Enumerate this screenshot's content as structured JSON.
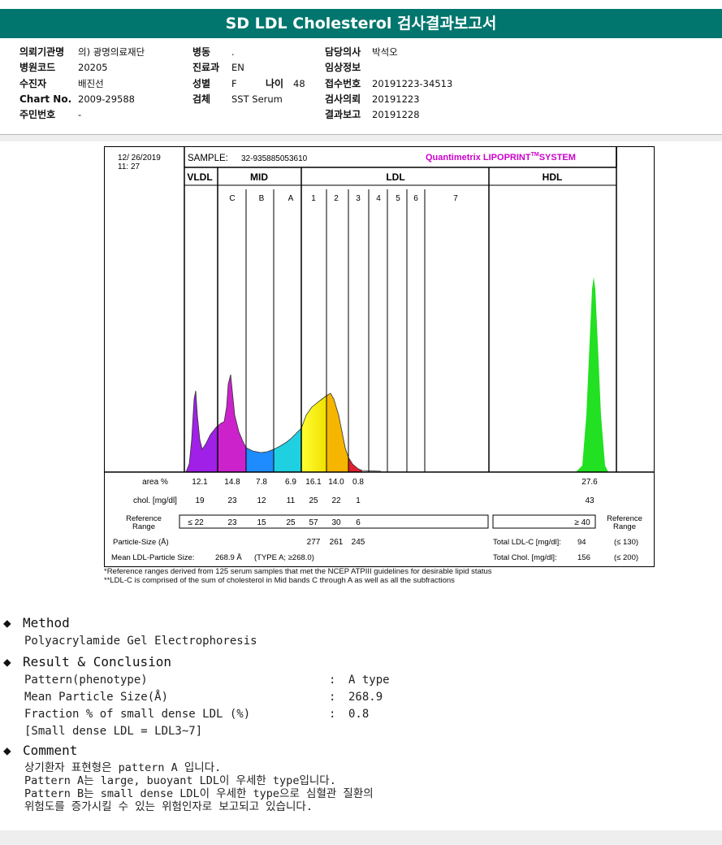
{
  "title": "SD LDL Cholesterol 검사결과보고서",
  "info": {
    "col1": [
      {
        "label": "의뢰기관명",
        "value": "의) 광명의료재단"
      },
      {
        "label": "병원코드",
        "value": "20205"
      },
      {
        "label": "수진자",
        "value": "배진선"
      },
      {
        "label": "Chart No.",
        "value": "2009-29588"
      },
      {
        "label": "주민번호",
        "value": "-"
      }
    ],
    "col2": [
      {
        "label": "병동",
        "value": "."
      },
      {
        "label": "진료과",
        "value": "EN"
      },
      {
        "label": "성별",
        "value": "F"
      },
      {
        "label": "검체",
        "value": "SST Serum"
      }
    ],
    "age": {
      "label": "나이",
      "value": "48"
    },
    "col3": [
      {
        "label": "담당의사",
        "value": "박석오"
      },
      {
        "label": "임상정보",
        "value": ""
      },
      {
        "label": "접수번호",
        "value": "20191223-34513"
      },
      {
        "label": "검사의뢰",
        "value": "20191223"
      },
      {
        "label": "결과보고",
        "value": "20191228"
      }
    ]
  },
  "report": {
    "date": "12/ 26/2019",
    "time": "11: 27",
    "sample_label": "SAMPLE:",
    "sample_id": "32-935885053610",
    "system": "Quantimetrix LIPOPRINT",
    "system_tm": "TM",
    "system_suffix": "SYSTEM",
    "brand_color": "#cc00cc",
    "headers": {
      "vldl": "VLDL",
      "mid": "MID",
      "ldl": "LDL",
      "hdl": "HDL"
    },
    "bands": [
      "C",
      "B",
      "A",
      "1",
      "2",
      "3",
      "4",
      "5",
      "6",
      "7"
    ],
    "rows": {
      "area_label": "area %",
      "area": [
        "12.1",
        "14.8",
        "7.8",
        "6.9",
        "16.1",
        "14.0",
        "0.8"
      ],
      "area_hdl": "27.6",
      "chol_label": "chol. [mg/dl]",
      "chol": [
        "19",
        "23",
        "12",
        "11",
        "25",
        "22",
        "1"
      ],
      "chol_hdl": "43",
      "ref_label_1": "Reference",
      "ref_label_2": "Range",
      "ref": [
        "≤ 22",
        "23",
        "15",
        "25",
        "57",
        "30",
        "6"
      ],
      "ref_hdl": "≥ 40",
      "ref_right_1": "Reference",
      "ref_right_2": "Range",
      "psize_label": "Particle-Size (Å)",
      "psize": [
        "277",
        "261",
        "245"
      ],
      "total_ldl_label": "Total LDL-C [mg/dl]:",
      "total_ldl": "94",
      "total_ldl_ref": "(≤ 130)",
      "mean_label": "Mean LDL-Particle Size:",
      "mean_value": "268.9 Å",
      "mean_type": "(TYPE A; ≥268.0)",
      "total_chol_label": "Total Chol. [mg/dl]:",
      "total_chol": "156",
      "total_chol_ref": "(≤ 200)"
    }
  },
  "footnotes": [
    "*Reference ranges derived from 125 serum samples that met the NCEP ATPIII guidelines for desirable lipid status",
    "**LDL-C is comprised of the sum of cholesterol in Mid bands C through A as well as all the subfractions"
  ],
  "method": {
    "heading": "Method",
    "text": "Polyacrylamide Gel Electrophoresis"
  },
  "result": {
    "heading": "Result & Conclusion",
    "items": [
      {
        "label": "Pattern(phenotype)",
        "value": "A type"
      },
      {
        "label": "Mean Particle Size(Å)",
        "value": "268.9"
      },
      {
        "label": "Fraction % of small dense LDL (%)",
        "value": "0.8"
      }
    ],
    "note": "[Small dense LDL = LDL3~7]"
  },
  "comment": {
    "heading": "Comment",
    "lines": [
      "상기환자 표현형은 pattern A 입니다.",
      "Pattern A는 large, buoyant LDL이 우세한 type입니다.",
      "Pattern B는 small dense LDL이 우세한 type으로 심혈관 질환의",
      "위험도를 증가시킬 수 있는 위험인자로 보고되고 있습니다."
    ]
  }
}
